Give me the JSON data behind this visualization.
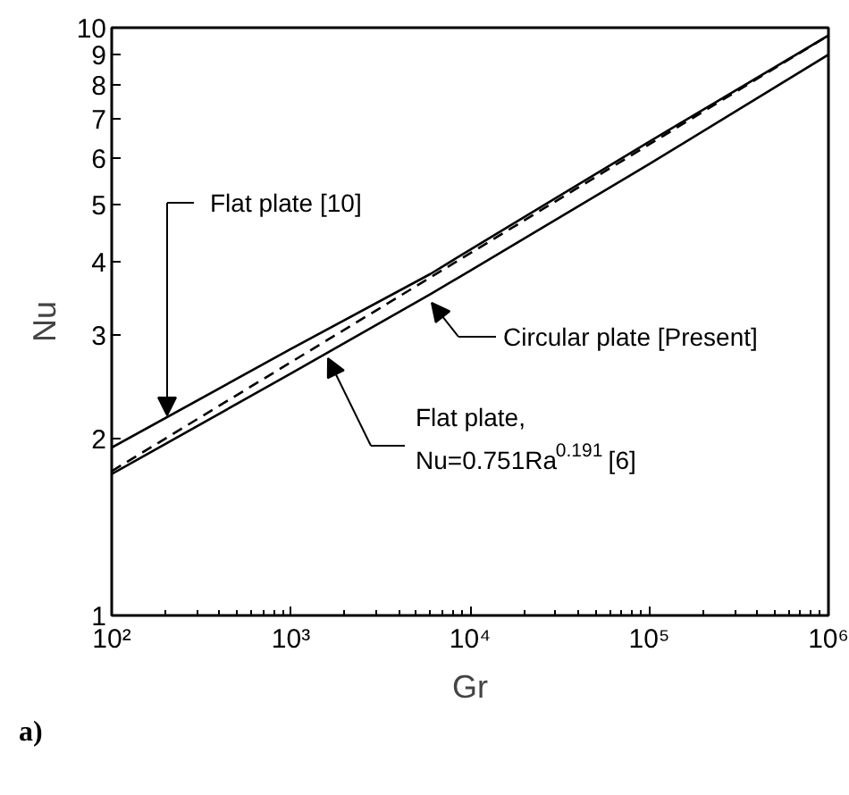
{
  "chart_data": {
    "type": "line",
    "xlabel": "Gr",
    "ylabel": "Nu",
    "log": "xy",
    "grid": false,
    "x": [
      100,
      1000,
      6000,
      10000,
      100000,
      1000000
    ],
    "xlim": [
      100,
      1000000
    ],
    "xticks": [
      {
        "value": 100,
        "label": "10²"
      },
      {
        "value": 1000,
        "label": "10³"
      },
      {
        "value": 10000,
        "label": "10⁴"
      },
      {
        "value": 100000,
        "label": "10⁵"
      },
      {
        "value": 1000000,
        "label": "10⁶"
      }
    ],
    "ylim": [
      1,
      10
    ],
    "yticks": [
      1,
      2,
      3,
      4,
      5,
      6,
      7,
      8,
      9,
      10
    ],
    "series": [
      {
        "color": "#000000",
        "line_style": "solid",
        "values": [
          1.93,
          2.84,
          3.81,
          4.19,
          6.4,
          9.7
        ]
      },
      {
        "color": "#000000",
        "line_style": "dashed",
        "x": [
          100,
          1000000
        ],
        "values": [
          1.76,
          9.7
        ]
      },
      {
        "color": "#000000",
        "line_style": "solid",
        "values": [
          1.74,
          2.58,
          3.52,
          3.86,
          5.86,
          9.0
        ]
      }
    ],
    "annotations": [
      "Flat plate [10]",
      "Circular plate [Present]",
      "Flat plate,\nNu=0.751Ra$^{0.191}$ [6]",
      "a)"
    ]
  }
}
